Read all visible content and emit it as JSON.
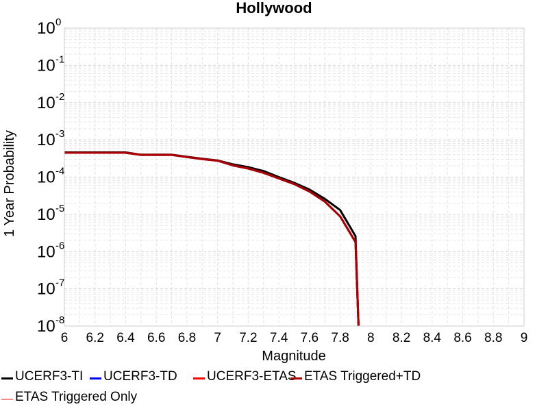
{
  "chart_data": {
    "type": "line",
    "title": "Hollywood",
    "xlabel": "Magnitude",
    "ylabel": "1 Year Probability",
    "xlim": [
      6,
      9
    ],
    "ylim": [
      1e-08,
      1
    ],
    "yscale": "log",
    "grid": true,
    "x_ticks": [
      "6",
      "6.2",
      "6.4",
      "6.6",
      "6.8",
      "7",
      "7.2",
      "7.4",
      "7.6",
      "7.8",
      "8",
      "8.2",
      "8.4",
      "8.6",
      "8.8",
      "9"
    ],
    "y_tick_base": "10",
    "y_tick_exponents": [
      "0",
      "-1",
      "-2",
      "-3",
      "-4",
      "-5",
      "-6",
      "-7",
      "-8"
    ],
    "legend_position": "bottom",
    "series": [
      {
        "name": "UCERF3-TI",
        "color": "#000000",
        "x": [
          6.0,
          6.1,
          6.2,
          6.3,
          6.4,
          6.5,
          6.6,
          6.7,
          6.8,
          6.9,
          7.0,
          7.1,
          7.2,
          7.3,
          7.4,
          7.5,
          7.6,
          7.7,
          7.8,
          7.9,
          7.92
        ],
        "y": [
          0.00046,
          0.00046,
          0.00046,
          0.00046,
          0.00046,
          0.0004,
          0.0004,
          0.0004,
          0.00035,
          0.00031,
          0.00028,
          0.00022,
          0.000185,
          0.000145,
          0.0001,
          7e-05,
          4.6e-05,
          2.6e-05,
          1.3e-05,
          2.6e-06,
          1e-08
        ]
      },
      {
        "name": "UCERF3-TD",
        "color": "#0000ff",
        "x": [
          6.0,
          6.1,
          6.2,
          6.3,
          6.4,
          6.5,
          6.6,
          6.7,
          6.8,
          6.9,
          7.0,
          7.1,
          7.2,
          7.3,
          7.4,
          7.5,
          7.6,
          7.7,
          7.8,
          7.9,
          7.92
        ],
        "y": [
          0.00045,
          0.00045,
          0.00045,
          0.00045,
          0.00045,
          0.000395,
          0.000395,
          0.000395,
          0.000345,
          0.000305,
          0.000275,
          0.000205,
          0.00017,
          0.00013,
          9.2e-05,
          6.5e-05,
          4.1e-05,
          2.2e-05,
          8.8e-06,
          1.8e-06,
          1e-08
        ]
      },
      {
        "name": "UCERF3-ETAS",
        "color": "#ff0000",
        "x": [
          6.0,
          6.1,
          6.2,
          6.3,
          6.4,
          6.5,
          6.6,
          6.7,
          6.8,
          6.9,
          7.0,
          7.1,
          7.2,
          7.3,
          7.4,
          7.5,
          7.6,
          7.7,
          7.8,
          7.9,
          7.92
        ],
        "y": [
          0.00045,
          0.00045,
          0.00045,
          0.00045,
          0.00045,
          0.000395,
          0.000395,
          0.000395,
          0.000345,
          0.000305,
          0.000275,
          0.000205,
          0.00017,
          0.00013,
          9.2e-05,
          6.5e-05,
          4.1e-05,
          2.2e-05,
          8.8e-06,
          1.8e-06,
          1e-08
        ]
      },
      {
        "name": "ETAS Triggered+TD",
        "color": "#aa0000",
        "x": [
          6.0,
          6.1,
          6.2,
          6.3,
          6.4,
          6.5,
          6.6,
          6.7,
          6.8,
          6.9,
          7.0,
          7.1,
          7.2,
          7.3,
          7.4,
          7.5,
          7.6,
          7.7,
          7.8,
          7.9,
          7.92
        ],
        "y": [
          0.00045,
          0.00045,
          0.00045,
          0.00045,
          0.00045,
          0.000395,
          0.000395,
          0.000395,
          0.000345,
          0.000305,
          0.000275,
          0.000205,
          0.00017,
          0.00013,
          9.2e-05,
          6.5e-05,
          4.1e-05,
          2.2e-05,
          8.8e-06,
          1.8e-06,
          1e-08
        ]
      },
      {
        "name": "ETAS Triggered Only",
        "color": "#ff8888",
        "x": [],
        "y": []
      }
    ]
  }
}
